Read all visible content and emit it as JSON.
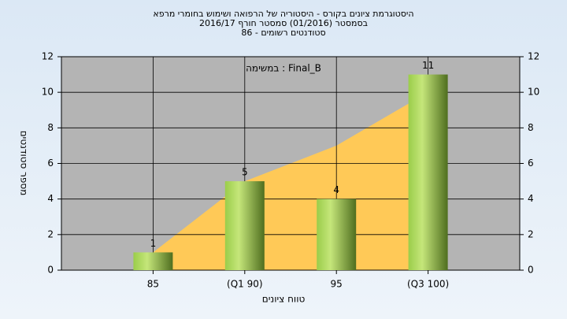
{
  "chart_data": {
    "type": "bar",
    "title": [
      "היסטוגרמת ציונים בקורס - היסטוריה של הרפואה ושימוש בחומרי מרפא",
      "בסמסטר  (01/2016)  סמסטר חורף 2016/17",
      "סטודנטים רשומים - 86"
    ],
    "annotation": "במשימה : Final_B",
    "x_label": "טווח ציונים",
    "y_label": "מספר סטודנטים",
    "categories": [
      "85",
      "(Q1 90)",
      "95",
      "(Q3 100)"
    ],
    "values": [
      1,
      5,
      4,
      11
    ],
    "value_labels": [
      "1",
      "5",
      "4",
      "11"
    ],
    "color": "#8fbf3a",
    "area": {
      "values": [
        1,
        5,
        7,
        10
      ],
      "color": "#ffc957"
    },
    "ylim": [
      0,
      12
    ],
    "yticks": [
      0,
      2,
      4,
      6,
      8,
      10,
      12
    ],
    "y2lim": [
      0,
      12
    ],
    "y2ticks": [
      0,
      2,
      4,
      6,
      8,
      10,
      12
    ],
    "grid": true
  }
}
